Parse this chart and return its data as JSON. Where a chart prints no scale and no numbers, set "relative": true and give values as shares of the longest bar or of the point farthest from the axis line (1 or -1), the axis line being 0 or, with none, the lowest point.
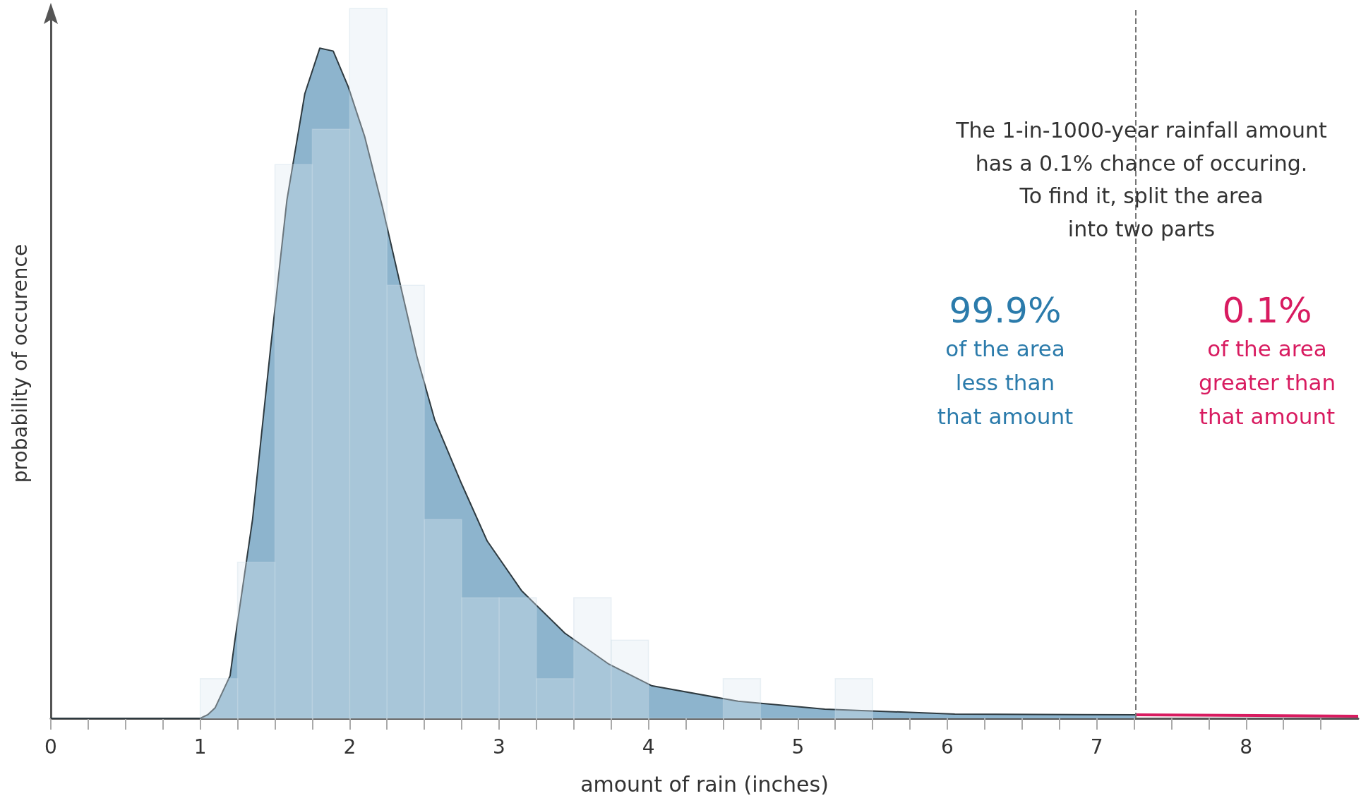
{
  "chart_data": {
    "type": "histogram",
    "relative": true,
    "xlabel": "amount of rain (inches)",
    "ylabel": "probability of occurence",
    "xlim": [
      0,
      8.75
    ],
    "xticks": [
      0,
      {
        "value": 0.25,
        "label": null
      },
      {
        "value": 0.5,
        "label": null
      },
      {
        "value": 0.75,
        "label": null
      },
      1,
      {
        "value": 1.25,
        "label": null
      },
      {
        "value": 1.5,
        "label": null
      },
      {
        "value": 1.75,
        "label": null
      },
      2,
      {
        "value": 2.25,
        "label": null
      },
      {
        "value": 2.5,
        "label": null
      },
      {
        "value": 2.75,
        "label": null
      },
      3,
      {
        "value": 3.25,
        "label": null
      },
      {
        "value": 3.5,
        "label": null
      },
      {
        "value": 3.75,
        "label": null
      },
      4,
      {
        "value": 4.25,
        "label": null
      },
      {
        "value": 4.5,
        "label": null
      },
      {
        "value": 4.75,
        "label": null
      },
      5,
      {
        "value": 5.25,
        "label": null
      },
      {
        "value": 5.5,
        "label": null
      },
      {
        "value": 5.75,
        "label": null
      },
      6,
      {
        "value": 6.25,
        "label": null
      },
      {
        "value": 6.5,
        "label": null
      },
      {
        "value": 6.75,
        "label": null
      },
      7,
      {
        "value": 7.25,
        "label": null
      },
      {
        "value": 7.5,
        "label": null
      },
      {
        "value": 7.75,
        "label": null
      },
      8,
      {
        "value": 8.25,
        "label": null
      },
      {
        "value": 8.5,
        "label": null
      }
    ],
    "series": [
      {
        "type": "area",
        "color": "#8db4cd",
        "x": [
          0,
          1,
          1.05,
          1.1,
          1.2,
          1.23,
          1.35,
          1.47,
          1.58,
          1.7,
          1.8,
          1.89,
          1.99,
          2.1,
          2.22,
          2.34,
          2.45,
          2.57,
          2.75,
          2.92,
          3.15,
          3.44,
          3.73,
          4.02,
          4.6,
          5.18,
          6.05,
          7.26
        ],
        "values": [
          0,
          0,
          0.005,
          0.015,
          0.06,
          0.107,
          0.28,
          0.52,
          0.73,
          0.88,
          0.944,
          0.94,
          0.89,
          0.82,
          0.72,
          0.61,
          0.51,
          0.42,
          0.33,
          0.25,
          0.18,
          0.12,
          0.077,
          0.046,
          0.024,
          0.013,
          0.006,
          0.005
        ]
      },
      {
        "type": "line",
        "color": "#d81b60",
        "x": [
          7.26,
          8.75
        ],
        "values": [
          0.005,
          0.003
        ]
      },
      {
        "color": "#dce8f2",
        "bins": [
          1,
          1.25,
          1.5,
          1.75,
          2,
          2.25,
          2.5,
          2.75,
          3,
          3.25,
          3.5,
          3.75,
          4,
          4.25,
          4.5,
          4.75,
          5,
          5.25,
          5.5
        ],
        "values": [
          0.056,
          0.22,
          0.78,
          0.83,
          1,
          0.61,
          0.28,
          0.17,
          0.17,
          0.056,
          0.17,
          0.11,
          0,
          0,
          0.056,
          0,
          0,
          0.056
        ]
      }
    ],
    "ref_lines": [
      {
        "axis": "x",
        "value": 7.26,
        "label": null,
        "color": "#777777",
        "line_style": "dashed"
      }
    ],
    "annotations": [
      "The 1-in-1000-year rainfall amount\nhas a 0.1% chance of occuring.\nTo find it, split the area\ninto two parts",
      "99.9%\nof the area\nless than\nthat amount",
      "0.1%\nof the area\ngreater than\nthat amount"
    ]
  }
}
